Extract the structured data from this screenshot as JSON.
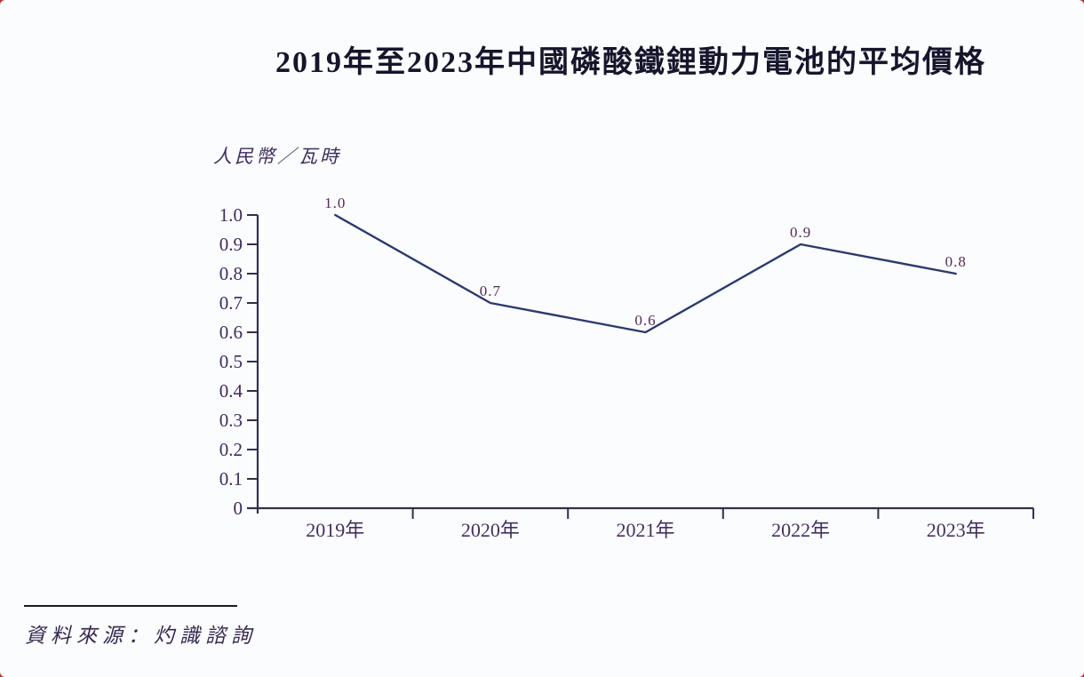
{
  "page": {
    "background": "#fbfcfe"
  },
  "chart_data": {
    "type": "line",
    "title": "2019年至2023年中國磷酸鐵鋰動力電池的平均價格",
    "ylabel": "人民幣／瓦時",
    "xlabel": "",
    "categories": [
      "2019年",
      "2020年",
      "2021年",
      "2022年",
      "2023年"
    ],
    "values": [
      1.0,
      0.7,
      0.6,
      0.9,
      0.8
    ],
    "data_labels": [
      "1.0",
      "0.7",
      "0.6",
      "0.9",
      "0.8"
    ],
    "ylim": [
      0,
      1.0
    ],
    "yticks": [
      "0",
      "0.1",
      "0.2",
      "0.3",
      "0.4",
      "0.5",
      "0.6",
      "0.7",
      "0.8",
      "0.9",
      "1.0"
    ],
    "grid": false,
    "legend_position": "none",
    "line_color": "#2c3a6b",
    "axis_color": "#332f4a"
  },
  "footer": {
    "source": "資料來源：灼識諮詢"
  }
}
